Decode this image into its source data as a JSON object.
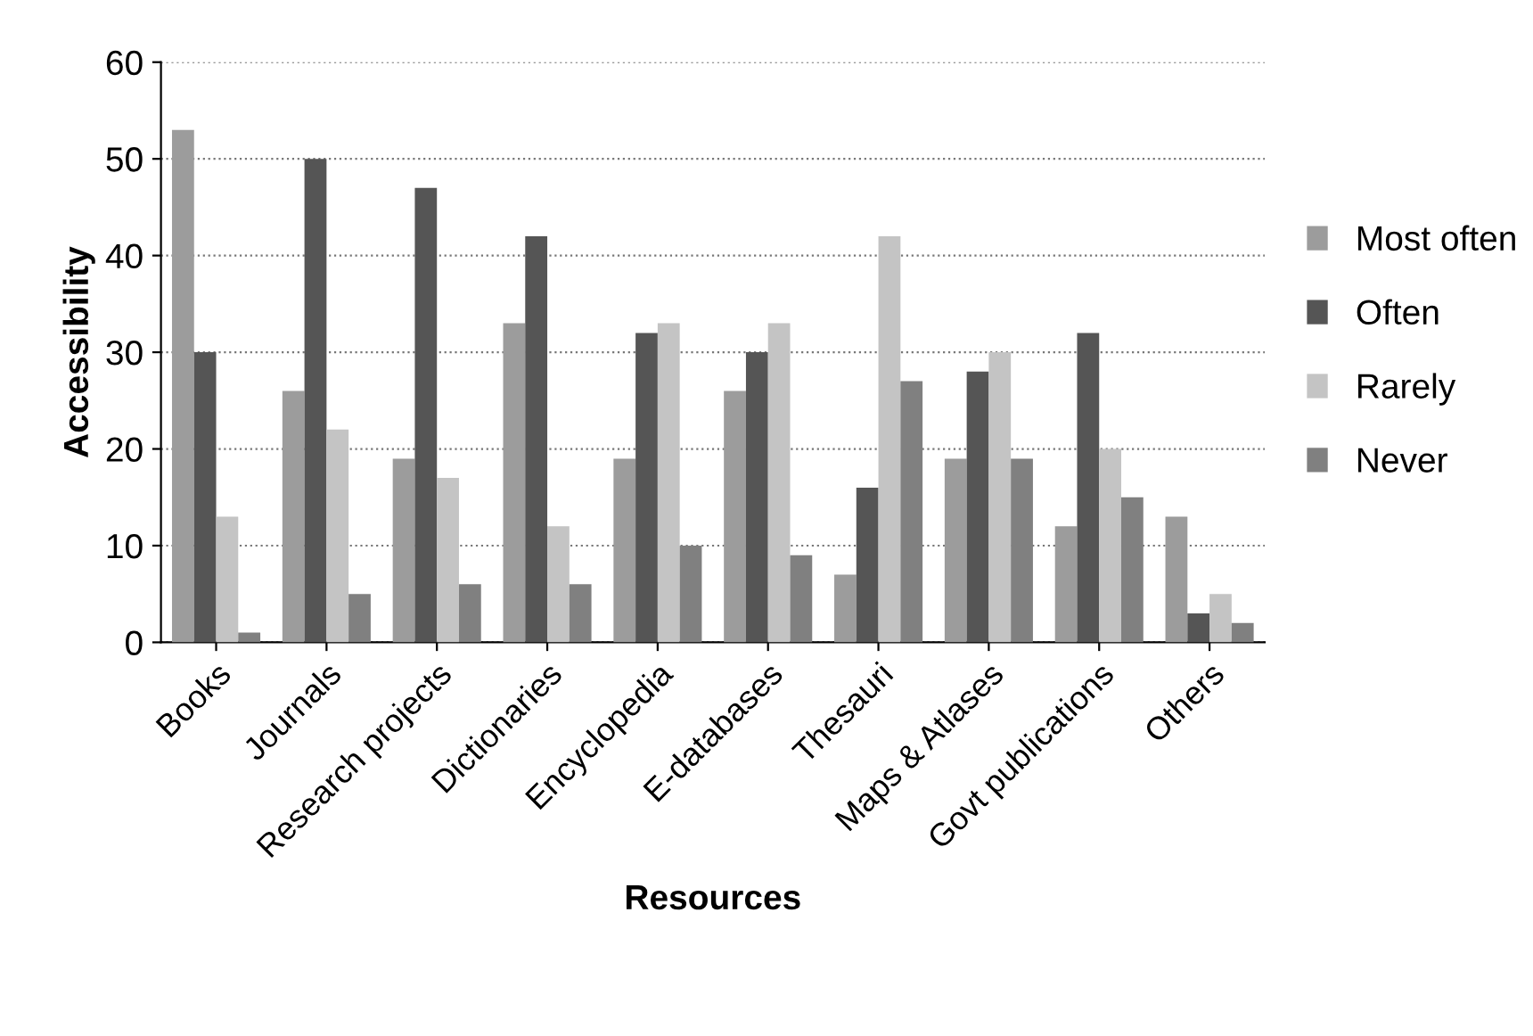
{
  "chart_data": {
    "type": "bar",
    "xlabel": "Resources",
    "ylabel": "Accessibility",
    "categories": [
      "Books",
      "Journals",
      "Research projects",
      "Dictionaries",
      "Encyclopedia",
      "E-databases",
      "Thesauri",
      "Maps & Atlases",
      "Govt publications",
      "Others"
    ],
    "series": [
      {
        "name": "Most often",
        "color": "#9c9c9c",
        "values": [
          53,
          26,
          19,
          33,
          19,
          26,
          7,
          19,
          12,
          13
        ]
      },
      {
        "name": "Often",
        "color": "#555555",
        "values": [
          30,
          50,
          47,
          42,
          32,
          30,
          16,
          28,
          32,
          3
        ]
      },
      {
        "name": "Rarely",
        "color": "#c4c4c4",
        "values": [
          13,
          22,
          17,
          12,
          33,
          33,
          42,
          30,
          20,
          5
        ]
      },
      {
        "name": "Never",
        "color": "#808080",
        "values": [
          1,
          5,
          6,
          6,
          10,
          9,
          27,
          19,
          15,
          2
        ]
      }
    ],
    "ylim": [
      0,
      60
    ],
    "yticks": [
      0,
      10,
      20,
      30,
      40,
      50,
      60
    ],
    "grid": "y",
    "legend": "right"
  }
}
